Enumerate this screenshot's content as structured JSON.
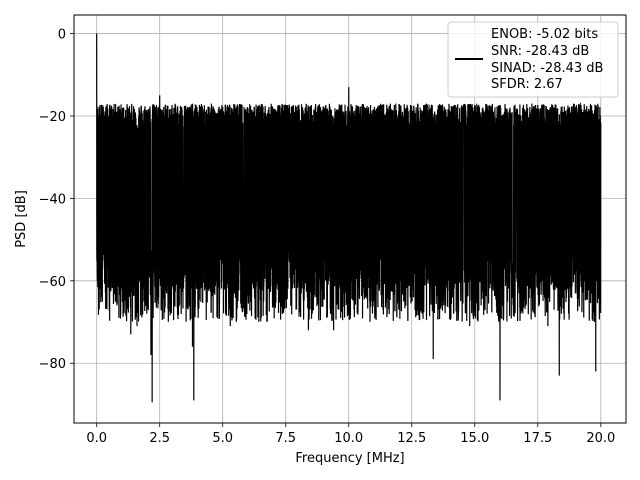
{
  "chart_data": {
    "type": "line",
    "title": "",
    "xlabel": "Frequency [MHz]",
    "ylabel": "PSD [dB]",
    "xlim": [
      -0.9,
      21.0
    ],
    "ylim": [
      -94.5,
      4.5
    ],
    "xticks": [
      0.0,
      2.5,
      5.0,
      7.5,
      10.0,
      12.5,
      15.0,
      17.5,
      20.0
    ],
    "xtick_labels": [
      "0.0",
      "2.5",
      "5.0",
      "7.5",
      "10.0",
      "12.5",
      "15.0",
      "17.5",
      "20.0"
    ],
    "yticks": [
      0,
      -20,
      -40,
      -60,
      -80
    ],
    "ytick_labels": [
      "0",
      "−20",
      "−40",
      "−60",
      "−80"
    ],
    "grid": true,
    "legend_position": "top-right",
    "line_color": "#000000",
    "series": [
      {
        "noise_band_top_dB": -21,
        "noise_band_bottom_dB": -62,
        "x_range": [
          0.0,
          20.0
        ],
        "peaks": [
          {
            "x": 0.0,
            "y": 0.0
          },
          {
            "x": 2.5,
            "y": -15.0
          },
          {
            "x": 10.0,
            "y": -13.0
          }
        ],
        "dips": [
          {
            "x": 2.2,
            "y": -89.5
          },
          {
            "x": 3.85,
            "y": -89.0
          },
          {
            "x": 3.8,
            "y": -76.0
          },
          {
            "x": 2.15,
            "y": -78.0
          },
          {
            "x": 13.35,
            "y": -79.0
          },
          {
            "x": 16.0,
            "y": -89.0
          },
          {
            "x": 18.35,
            "y": -83.0
          },
          {
            "x": 19.8,
            "y": -82.0
          },
          {
            "x": 1.35,
            "y": -73.0
          },
          {
            "x": 1.6,
            "y": -71.0
          },
          {
            "x": 5.3,
            "y": -71.0
          },
          {
            "x": 8.4,
            "y": -72.0
          },
          {
            "x": 9.4,
            "y": -72.0
          },
          {
            "x": 14.8,
            "y": -71.0
          },
          {
            "x": 17.9,
            "y": -71.0
          }
        ]
      }
    ],
    "legend": {
      "lines": [
        "ENOB: -5.02 bits",
        "SNR: -28.43 dB",
        "SINAD: -28.43 dB",
        "SFDR: 2.67"
      ]
    }
  }
}
